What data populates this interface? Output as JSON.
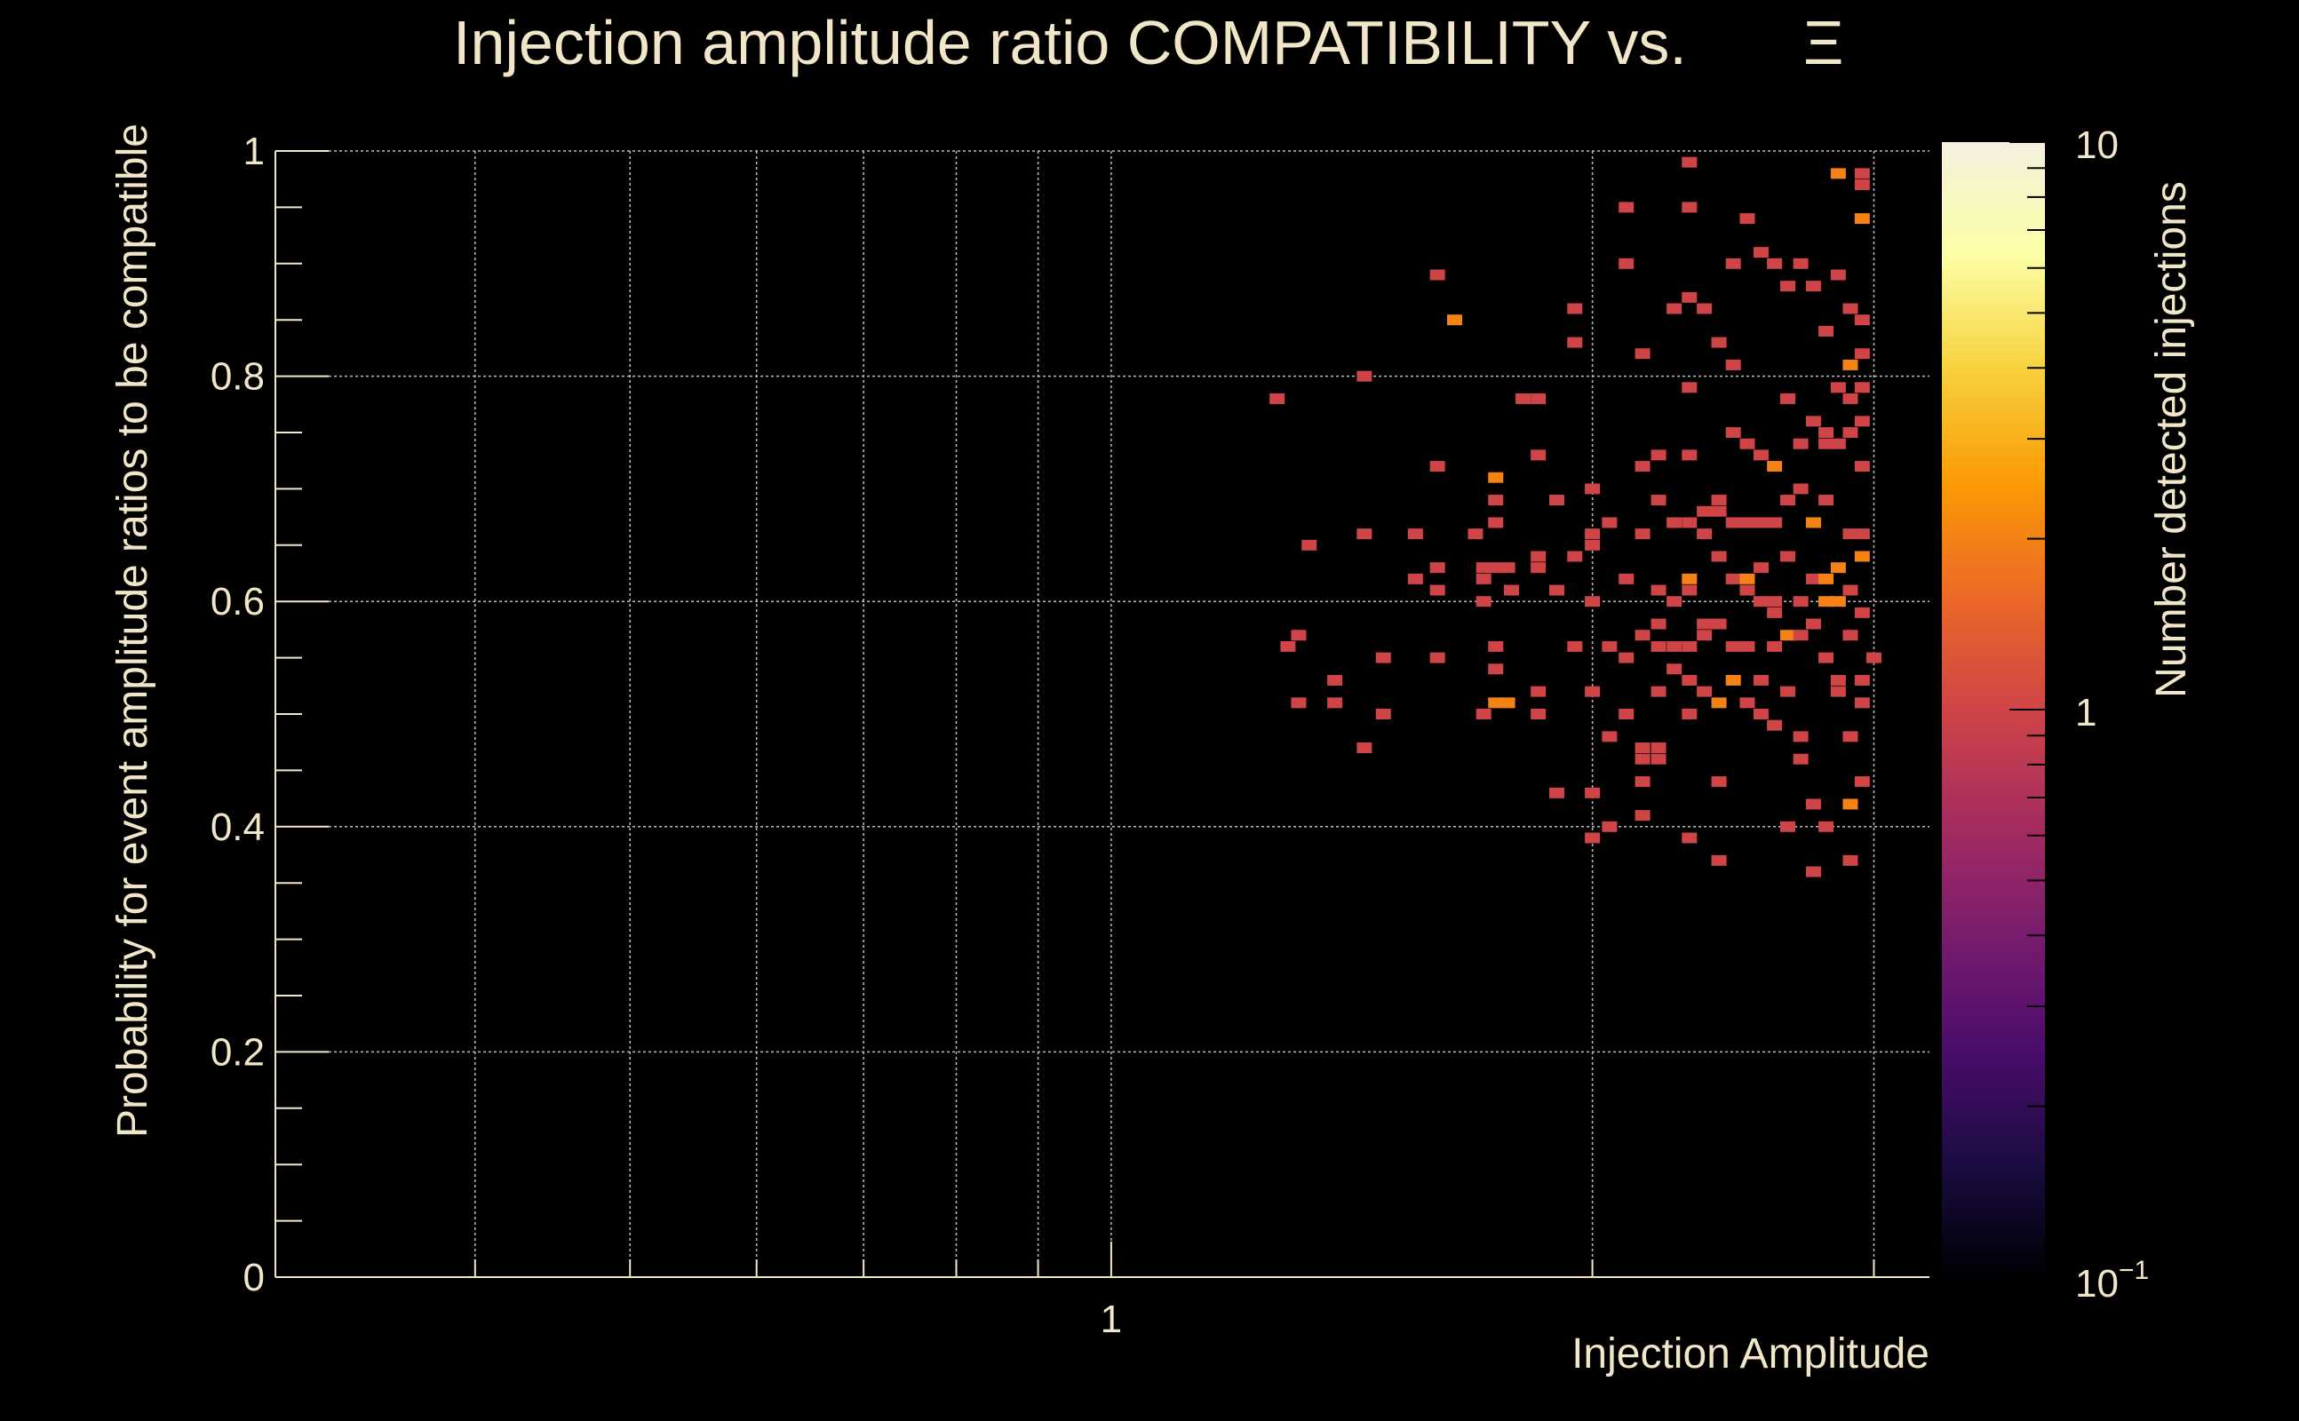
{
  "chart_data": {
    "type": "heatmap",
    "title": "Injection amplitude ratio COMPATIBILITY vs.",
    "title_symbol": "Ξ",
    "xlabel": "Injection Amplitude",
    "ylabel": "Probability for event amplitude ratios to be compatible",
    "colorbar_label": "Number detected injections",
    "x_scale": "log",
    "xlim": [
      0.3,
      3.25
    ],
    "ylim": [
      0,
      1
    ],
    "x_tick_labels": [
      "1"
    ],
    "y_tick_labels": [
      "0",
      "0.2",
      "0.4",
      "0.6",
      "0.8",
      "1"
    ],
    "y_ticks": [
      0,
      0.2,
      0.4,
      0.6,
      0.8,
      1
    ],
    "x_gridlines": [
      0.4,
      0.5,
      0.6,
      0.7,
      0.8,
      0.9,
      1,
      2,
      3
    ],
    "colorbar": {
      "scale": "log",
      "min": 0.1,
      "max": 10,
      "tick_labels": {
        "max": "10",
        "mid": "1",
        "min_base": "10",
        "min_exp": "−1"
      }
    },
    "colormap": [
      "#000004",
      "#1b0c41",
      "#4a0c6b",
      "#781c6d",
      "#a52c60",
      "#cf4446",
      "#ed6925",
      "#fb9b06",
      "#f7d13d",
      "#fcffa4",
      "#f5f0e0"
    ],
    "grid": true,
    "bins": [
      [
        1.27,
        0.78,
        1
      ],
      [
        1.31,
        0.51,
        1
      ],
      [
        1.31,
        0.57,
        1
      ],
      [
        1.29,
        0.56,
        1
      ],
      [
        1.33,
        0.65,
        1
      ],
      [
        1.38,
        0.53,
        1
      ],
      [
        1.38,
        0.51,
        1
      ],
      [
        1.44,
        0.47,
        1
      ],
      [
        1.44,
        0.66,
        1
      ],
      [
        1.44,
        0.8,
        1
      ],
      [
        1.48,
        0.55,
        1
      ],
      [
        1.48,
        0.5,
        1
      ],
      [
        1.55,
        0.66,
        1
      ],
      [
        1.55,
        0.62,
        1
      ],
      [
        1.6,
        0.89,
        1
      ],
      [
        1.6,
        0.72,
        1
      ],
      [
        1.6,
        0.61,
        1
      ],
      [
        1.6,
        0.63,
        1
      ],
      [
        1.6,
        0.55,
        1
      ],
      [
        1.64,
        0.85,
        2
      ],
      [
        1.69,
        0.66,
        1
      ],
      [
        1.71,
        0.63,
        1
      ],
      [
        1.71,
        0.62,
        1
      ],
      [
        1.71,
        0.6,
        1
      ],
      [
        1.71,
        0.5,
        1
      ],
      [
        1.74,
        0.71,
        2
      ],
      [
        1.74,
        0.69,
        1
      ],
      [
        1.74,
        0.67,
        1
      ],
      [
        1.74,
        0.63,
        1
      ],
      [
        1.74,
        0.56,
        1
      ],
      [
        1.74,
        0.54,
        1
      ],
      [
        1.74,
        0.51,
        2
      ],
      [
        1.77,
        0.51,
        2
      ],
      [
        1.77,
        0.63,
        1
      ],
      [
        1.78,
        0.61,
        1
      ],
      [
        1.81,
        0.78,
        1
      ],
      [
        1.85,
        0.78,
        1
      ],
      [
        1.85,
        0.73,
        1
      ],
      [
        1.85,
        0.64,
        1
      ],
      [
        1.85,
        0.63,
        1
      ],
      [
        1.85,
        0.52,
        1
      ],
      [
        1.85,
        0.5,
        1
      ],
      [
        1.9,
        0.69,
        1
      ],
      [
        1.9,
        0.61,
        1
      ],
      [
        1.9,
        0.43,
        1
      ],
      [
        1.95,
        0.86,
        1
      ],
      [
        1.95,
        0.83,
        1
      ],
      [
        1.95,
        0.64,
        1
      ],
      [
        1.95,
        0.56,
        1
      ],
      [
        2.0,
        0.7,
        1
      ],
      [
        2.0,
        0.66,
        1
      ],
      [
        2.0,
        0.65,
        1
      ],
      [
        2.0,
        0.6,
        1
      ],
      [
        2.0,
        0.52,
        1
      ],
      [
        2.0,
        0.43,
        1
      ],
      [
        2.0,
        0.39,
        1
      ],
      [
        2.05,
        0.67,
        1
      ],
      [
        2.05,
        0.56,
        1
      ],
      [
        2.05,
        0.48,
        1
      ],
      [
        2.05,
        0.4,
        1
      ],
      [
        2.1,
        0.95,
        1
      ],
      [
        2.1,
        0.9,
        1
      ],
      [
        2.1,
        0.62,
        1
      ],
      [
        2.1,
        0.55,
        1
      ],
      [
        2.1,
        0.5,
        1
      ],
      [
        2.15,
        0.82,
        1
      ],
      [
        2.15,
        0.72,
        1
      ],
      [
        2.15,
        0.66,
        1
      ],
      [
        2.15,
        0.57,
        1
      ],
      [
        2.15,
        0.47,
        1
      ],
      [
        2.15,
        0.46,
        1
      ],
      [
        2.15,
        0.44,
        1
      ],
      [
        2.15,
        0.41,
        1
      ],
      [
        2.2,
        0.73,
        1
      ],
      [
        2.2,
        0.69,
        1
      ],
      [
        2.2,
        0.61,
        1
      ],
      [
        2.2,
        0.58,
        1
      ],
      [
        2.2,
        0.56,
        1
      ],
      [
        2.2,
        0.52,
        1
      ],
      [
        2.2,
        0.47,
        1
      ],
      [
        2.2,
        0.46,
        1
      ],
      [
        2.25,
        0.86,
        1
      ],
      [
        2.25,
        0.67,
        1
      ],
      [
        2.25,
        0.6,
        1
      ],
      [
        2.25,
        0.56,
        1
      ],
      [
        2.25,
        0.54,
        1
      ],
      [
        2.3,
        0.95,
        1
      ],
      [
        2.3,
        0.87,
        1
      ],
      [
        2.3,
        0.67,
        1
      ],
      [
        2.3,
        0.62,
        2
      ],
      [
        2.3,
        0.61,
        1
      ],
      [
        2.3,
        0.56,
        1
      ],
      [
        2.3,
        0.53,
        1
      ],
      [
        2.3,
        0.5,
        1
      ],
      [
        2.3,
        0.39,
        1
      ],
      [
        2.3,
        0.79,
        1
      ],
      [
        2.3,
        0.73,
        1
      ],
      [
        2.3,
        0.99,
        1
      ],
      [
        2.35,
        0.86,
        1
      ],
      [
        2.35,
        0.68,
        1
      ],
      [
        2.35,
        0.66,
        1
      ],
      [
        2.35,
        0.58,
        1
      ],
      [
        2.35,
        0.57,
        1
      ],
      [
        2.35,
        0.52,
        1
      ],
      [
        2.4,
        0.83,
        1
      ],
      [
        2.4,
        0.69,
        1
      ],
      [
        2.4,
        0.68,
        1
      ],
      [
        2.4,
        0.64,
        1
      ],
      [
        2.4,
        0.58,
        1
      ],
      [
        2.4,
        0.51,
        2
      ],
      [
        2.4,
        0.44,
        1
      ],
      [
        2.4,
        0.37,
        1
      ],
      [
        2.45,
        0.81,
        1
      ],
      [
        2.45,
        0.75,
        1
      ],
      [
        2.45,
        0.67,
        1
      ],
      [
        2.45,
        0.62,
        1
      ],
      [
        2.45,
        0.56,
        1
      ],
      [
        2.45,
        0.53,
        2
      ],
      [
        2.45,
        0.9,
        1
      ],
      [
        2.5,
        0.94,
        1
      ],
      [
        2.5,
        0.74,
        1
      ],
      [
        2.5,
        0.67,
        1
      ],
      [
        2.5,
        0.62,
        2
      ],
      [
        2.5,
        0.61,
        1
      ],
      [
        2.5,
        0.56,
        1
      ],
      [
        2.5,
        0.51,
        1
      ],
      [
        2.55,
        0.91,
        1
      ],
      [
        2.55,
        0.73,
        1
      ],
      [
        2.55,
        0.67,
        1
      ],
      [
        2.55,
        0.63,
        1
      ],
      [
        2.55,
        0.6,
        1
      ],
      [
        2.55,
        0.53,
        1
      ],
      [
        2.55,
        0.5,
        1
      ],
      [
        2.6,
        0.9,
        1
      ],
      [
        2.6,
        0.72,
        2
      ],
      [
        2.6,
        0.67,
        1
      ],
      [
        2.6,
        0.6,
        1
      ],
      [
        2.6,
        0.59,
        1
      ],
      [
        2.6,
        0.56,
        1
      ],
      [
        2.6,
        0.49,
        1
      ],
      [
        2.65,
        0.88,
        1
      ],
      [
        2.65,
        0.78,
        1
      ],
      [
        2.65,
        0.69,
        1
      ],
      [
        2.65,
        0.64,
        1
      ],
      [
        2.65,
        0.57,
        2
      ],
      [
        2.65,
        0.52,
        1
      ],
      [
        2.65,
        0.4,
        1
      ],
      [
        2.7,
        0.9,
        1
      ],
      [
        2.7,
        0.74,
        1
      ],
      [
        2.7,
        0.7,
        1
      ],
      [
        2.7,
        0.6,
        1
      ],
      [
        2.7,
        0.57,
        1
      ],
      [
        2.7,
        0.48,
        1
      ],
      [
        2.7,
        0.46,
        1
      ],
      [
        2.75,
        0.88,
        1
      ],
      [
        2.75,
        0.76,
        1
      ],
      [
        2.75,
        0.67,
        2
      ],
      [
        2.75,
        0.62,
        1
      ],
      [
        2.75,
        0.58,
        1
      ],
      [
        2.75,
        0.42,
        1
      ],
      [
        2.75,
        0.36,
        1
      ],
      [
        2.8,
        0.84,
        1
      ],
      [
        2.8,
        0.75,
        1
      ],
      [
        2.8,
        0.74,
        1
      ],
      [
        2.8,
        0.69,
        1
      ],
      [
        2.8,
        0.62,
        2
      ],
      [
        2.8,
        0.6,
        2
      ],
      [
        2.8,
        0.55,
        1
      ],
      [
        2.8,
        0.4,
        1
      ],
      [
        2.85,
        0.89,
        1
      ],
      [
        2.85,
        0.79,
        1
      ],
      [
        2.85,
        0.74,
        1
      ],
      [
        2.85,
        0.63,
        2
      ],
      [
        2.85,
        0.6,
        2
      ],
      [
        2.85,
        0.53,
        1
      ],
      [
        2.85,
        0.52,
        1
      ],
      [
        2.85,
        0.98,
        2
      ],
      [
        2.9,
        0.86,
        1
      ],
      [
        2.9,
        0.81,
        2
      ],
      [
        2.9,
        0.78,
        1
      ],
      [
        2.9,
        0.75,
        1
      ],
      [
        2.9,
        0.66,
        1
      ],
      [
        2.9,
        0.61,
        1
      ],
      [
        2.9,
        0.57,
        1
      ],
      [
        2.9,
        0.48,
        1
      ],
      [
        2.9,
        0.42,
        2
      ],
      [
        2.9,
        0.37,
        1
      ],
      [
        2.95,
        0.98,
        1
      ],
      [
        2.95,
        0.97,
        1
      ],
      [
        2.95,
        0.94,
        2
      ],
      [
        2.95,
        0.85,
        1
      ],
      [
        2.95,
        0.82,
        1
      ],
      [
        2.95,
        0.79,
        1
      ],
      [
        2.95,
        0.76,
        1
      ],
      [
        2.95,
        0.72,
        1
      ],
      [
        2.95,
        0.66,
        1
      ],
      [
        2.95,
        0.64,
        2
      ],
      [
        2.95,
        0.59,
        1
      ],
      [
        2.95,
        0.53,
        1
      ],
      [
        2.95,
        0.51,
        1
      ],
      [
        2.95,
        0.44,
        1
      ],
      [
        3.0,
        0.55,
        1
      ]
    ]
  }
}
